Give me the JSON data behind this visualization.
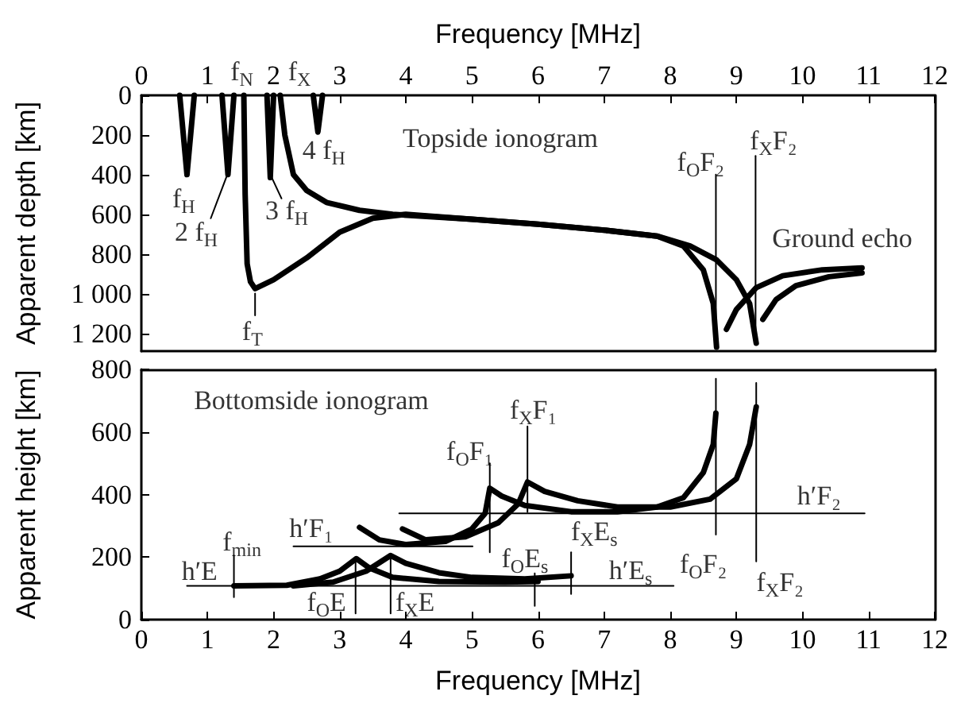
{
  "chart_data": [
    {
      "type": "line",
      "xlabel": "Frequency [MHz]",
      "ylabel": "Apparent depth [km]",
      "xlim": [
        0,
        12
      ],
      "xticks": [
        0,
        1,
        2,
        3,
        4,
        5,
        6,
        7,
        8,
        9,
        10,
        11,
        12
      ],
      "ylim": [
        1290,
        0
      ],
      "yticks": [
        0,
        200,
        400,
        600,
        800,
        {
          "value": 1000,
          "label": "1 000"
        },
        {
          "value": 1200,
          "label": "1 200"
        }
      ],
      "grid": false,
      "marker": "none",
      "series": [
        {
          "color": "#000000",
          "x": [
            0.58,
            0.69,
            0.8
          ],
          "values": [
            0,
            400,
            0
          ]
        },
        {
          "color": "#000000",
          "x": [
            1.22,
            1.31,
            1.4
          ],
          "values": [
            0,
            400,
            0
          ]
        },
        {
          "color": "#000000",
          "x": [
            1.9,
            1.95,
            2.0
          ],
          "values": [
            0,
            415,
            0
          ]
        },
        {
          "color": "#000000",
          "x": [
            2.6,
            2.67,
            2.74
          ],
          "values": [
            0,
            185,
            0
          ]
        },
        {
          "color": "#000000",
          "x": [
            1.55,
            1.57,
            1.6,
            1.65,
            1.72,
            2.0,
            2.5,
            3.0,
            3.5,
            4.0,
            5.0,
            6.0,
            7.0,
            7.8,
            8.2,
            8.5,
            8.65,
            8.7
          ],
          "values": [
            0,
            500,
            850,
            940,
            975,
            930,
            820,
            690,
            620,
            600,
            625,
            650,
            680,
            710,
            760,
            880,
            1050,
            1270
          ]
        },
        {
          "color": "#000000",
          "x": [
            2.1,
            2.17,
            2.3,
            2.5,
            2.8,
            3.3,
            3.8,
            5.0,
            6.0,
            7.0,
            7.8,
            8.3,
            8.7,
            9.0,
            9.2,
            9.3
          ],
          "values": [
            0,
            200,
            400,
            480,
            540,
            580,
            600,
            625,
            650,
            680,
            710,
            760,
            830,
            930,
            1050,
            1250
          ]
        },
        {
          "color": "#000000",
          "x": [
            8.85,
            9.0,
            9.3,
            9.7,
            10.3,
            10.9
          ],
          "values": [
            1180,
            1080,
            970,
            910,
            880,
            870
          ]
        },
        {
          "color": "#000000",
          "x": [
            9.4,
            9.6,
            9.9,
            10.4,
            10.9
          ],
          "values": [
            1130,
            1030,
            960,
            915,
            895
          ]
        },
        {
          "color": "#000000",
          "x": [
            8.69,
            8.69
          ],
          "values": [
            400,
            1255
          ]
        },
        {
          "color": "#000000",
          "x": [
            9.29,
            9.29
          ],
          "values": [
            305,
            1255
          ]
        },
        {
          "color": "#000000",
          "x": [
            1.72,
            1.72
          ],
          "values": [
            1000,
            1110
          ]
        },
        {
          "color": "#000000",
          "x": [
            1.05,
            1.3
          ],
          "values": [
            620,
            400
          ]
        },
        {
          "color": "#000000",
          "x": [
            1.98,
            2.12
          ],
          "values": [
            420,
            520
          ]
        }
      ],
      "annotations": [
        "f$_{N}$",
        "f$_{X}$",
        "f$_{H}$",
        "2 f$_{H}$",
        "3 f$_{H}$",
        "4 f$_{H}$",
        "f$_{T}$",
        "Topside ionogram",
        "f$_{O}$F₂",
        "f$_{X}$F₂",
        "Ground echo"
      ]
    },
    {
      "type": "line",
      "xlabel": "Frequency [MHz]",
      "ylabel": "Apparent height [km]",
      "xlim": [
        0,
        12
      ],
      "xticks": [
        0,
        1,
        2,
        3,
        4,
        5,
        6,
        7,
        8,
        9,
        10,
        11,
        12
      ],
      "ylim": [
        0,
        800
      ],
      "yticks": [
        0,
        200,
        400,
        600,
        800
      ],
      "grid": false,
      "marker": "none",
      "series": [
        {
          "color": "#000000",
          "x": [
            1.4,
            2.2,
            2.7,
            3.0,
            3.25,
            3.45,
            3.8,
            4.5,
            5.5,
            6.0
          ],
          "values": [
            108,
            110,
            130,
            155,
            195,
            165,
            135,
            122,
            120,
            122
          ]
        },
        {
          "color": "#000000",
          "x": [
            2.3,
            2.9,
            3.4,
            3.77,
            4.0,
            4.5,
            5.0,
            5.8,
            6.5
          ],
          "values": [
            108,
            120,
            155,
            205,
            180,
            150,
            135,
            130,
            140
          ]
        },
        {
          "color": "#000000",
          "x": [
            3.3,
            3.6,
            4.0,
            4.6,
            5.0,
            5.2,
            5.27,
            5.45,
            5.8,
            6.5,
            7.2,
            7.8,
            8.2,
            8.5,
            8.65,
            8.69
          ],
          "values": [
            295,
            255,
            240,
            250,
            290,
            340,
            420,
            395,
            365,
            345,
            345,
            360,
            390,
            470,
            560,
            660
          ]
        },
        {
          "color": "#000000",
          "x": [
            3.95,
            4.3,
            4.9,
            5.4,
            5.7,
            5.84,
            6.1,
            6.6,
            7.2,
            8.0,
            8.6,
            9.0,
            9.2,
            9.3
          ],
          "values": [
            290,
            255,
            265,
            310,
            370,
            440,
            410,
            380,
            360,
            360,
            385,
            450,
            560,
            680
          ]
        },
        {
          "color": "#000000",
          "x": [
            0.69,
            8.05
          ],
          "values": [
            108,
            108
          ]
        },
        {
          "color": "#000000",
          "x": [
            2.3,
            5.01
          ],
          "values": [
            234,
            234
          ]
        },
        {
          "color": "#000000",
          "x": [
            3.9,
            10.94
          ],
          "values": [
            340,
            340
          ]
        },
        {
          "color": "#000000",
          "x": [
            1.4,
            1.4
          ],
          "values": [
            72,
            205
          ]
        },
        {
          "color": "#000000",
          "x": [
            3.24,
            3.24
          ],
          "values": [
            20,
            200
          ]
        },
        {
          "color": "#000000",
          "x": [
            3.77,
            3.77
          ],
          "values": [
            20,
            210
          ]
        },
        {
          "color": "#000000",
          "x": [
            5.27,
            5.27
          ],
          "values": [
            215,
            500
          ]
        },
        {
          "color": "#000000",
          "x": [
            5.84,
            5.84
          ],
          "values": [
            344,
            618
          ]
        },
        {
          "color": "#000000",
          "x": [
            5.95,
            5.95
          ],
          "values": [
            44,
            148
          ]
        },
        {
          "color": "#000000",
          "x": [
            6.5,
            6.5
          ],
          "values": [
            82,
            215
          ]
        },
        {
          "color": "#000000",
          "x": [
            8.69,
            8.69
          ],
          "values": [
            272,
            770
          ]
        },
        {
          "color": "#000000",
          "x": [
            9.3,
            9.3
          ],
          "values": [
            186,
            757
          ]
        }
      ],
      "annotations": [
        "Bottomside ionogram",
        "f$_{min}$",
        "h′E",
        "f$_{O}$E",
        "f$_{X}$E",
        "h′F₁",
        "f$_{O}$F₁",
        "f$_{X}$F₁",
        "f$_{O}$E$_{s}$",
        "f$_{X}$E$_{s}$",
        "h′E$_{s}$",
        "f$_{O}$F₂",
        "f$_{X}$F₂",
        "h′F₂"
      ]
    }
  ]
}
